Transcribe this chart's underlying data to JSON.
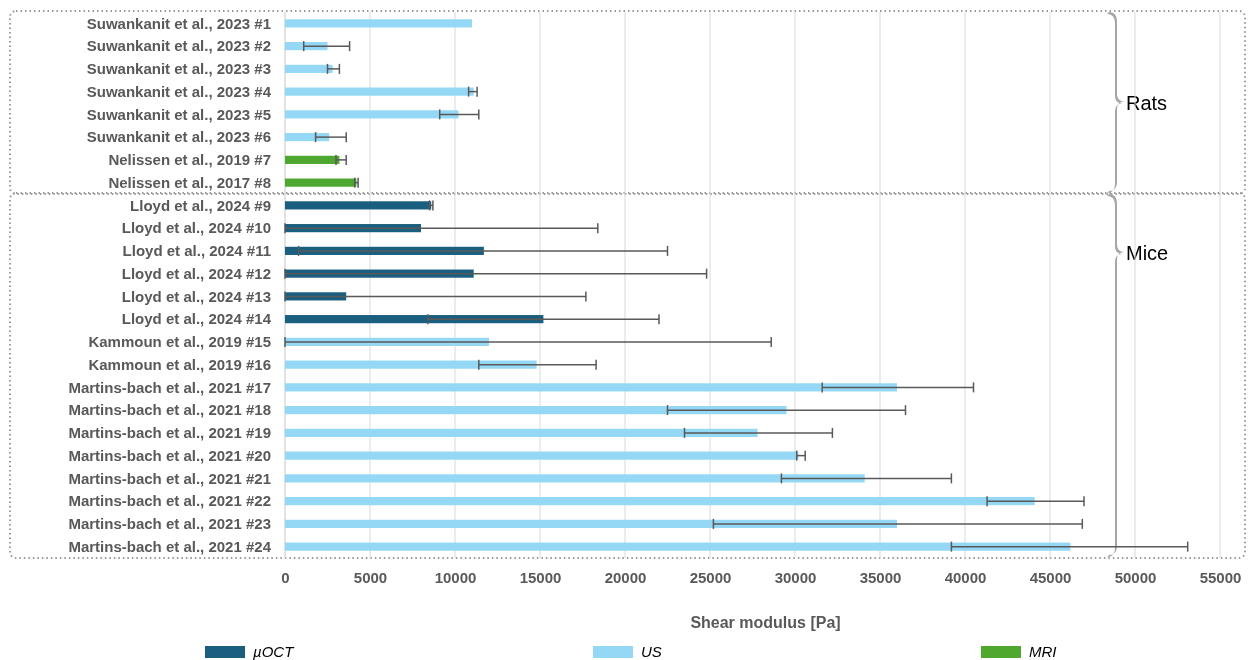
{
  "chart_data": {
    "type": "bar",
    "orientation": "horizontal",
    "xlabel": "Shear modulus [Pa]",
    "categories": [
      "Suwankanit et al., 2023 #1",
      "Suwankanit et al., 2023 #2",
      "Suwankanit et al., 2023 #3",
      "Suwankanit et al., 2023 #4",
      "Suwankanit et al., 2023 #5",
      "Suwankanit et al., 2023 #6",
      "Nelissen et al., 2019 #7",
      "Nelissen et al., 2017 #8",
      "Lloyd et al., 2024 #9",
      "Lloyd et al., 2024 #10",
      "Lloyd et al., 2024 #11",
      "Lloyd et al., 2024 #12",
      "Lloyd et al., 2024 #13",
      "Lloyd et al., 2024 #14",
      "Kammoun et al., 2019 #15",
      "Kammoun et al., 2019 #16",
      "Martins-bach et al., 2021 #17",
      "Martins-bach et al., 2021 #18",
      "Martins-bach et al., 2021 #19",
      "Martins-bach et al., 2021 #20",
      "Martins-bach et al., 2021 #21",
      "Martins-bach et al., 2021 #22",
      "Martins-bach et al., 2021 #23",
      "Martins-bach et al., 2021 #24"
    ],
    "series": [
      {
        "name": "µOCT",
        "color": "#1a5f7f",
        "values": [
          null,
          null,
          null,
          null,
          null,
          null,
          null,
          null,
          8600,
          8000,
          11700,
          11100,
          3600,
          15200,
          null,
          null,
          null,
          null,
          null,
          null,
          null,
          null,
          null,
          null
        ],
        "errors": [
          null,
          null,
          null,
          null,
          null,
          null,
          null,
          null,
          [
            8500,
            8700
          ],
          [
            0,
            18400
          ],
          [
            800,
            22500
          ],
          [
            0,
            24800
          ],
          [
            0,
            17700
          ],
          [
            8400,
            22000
          ],
          null,
          null,
          null,
          null,
          null,
          null,
          null,
          null,
          null,
          null
        ]
      },
      {
        "name": "US",
        "color": "#94d8f5",
        "values": [
          11000,
          2500,
          2800,
          11100,
          10200,
          2600,
          null,
          null,
          null,
          null,
          null,
          null,
          null,
          null,
          12000,
          14800,
          36000,
          29500,
          27800,
          30200,
          34100,
          44100,
          36000,
          46200
        ],
        "errors": [
          null,
          [
            1100,
            3800
          ],
          [
            2500,
            3200
          ],
          [
            10800,
            11300
          ],
          [
            9100,
            11400
          ],
          [
            1800,
            3600
          ],
          null,
          null,
          null,
          null,
          null,
          null,
          null,
          null,
          [
            0,
            28600
          ],
          [
            11400,
            18300
          ],
          [
            31600,
            40500
          ],
          [
            22500,
            36500
          ],
          [
            23500,
            32200
          ],
          [
            30100,
            30600
          ],
          [
            29200,
            39200
          ],
          [
            41300,
            47000
          ],
          [
            25200,
            46900
          ],
          [
            39200,
            53100
          ]
        ]
      },
      {
        "name": "MRI",
        "color": "#4ea72e",
        "values": [
          null,
          null,
          null,
          null,
          null,
          null,
          3200,
          4200,
          null,
          null,
          null,
          null,
          null,
          null,
          null,
          null,
          null,
          null,
          null,
          null,
          null,
          null,
          null,
          null
        ],
        "errors": [
          null,
          null,
          null,
          null,
          null,
          null,
          [
            3000,
            3600
          ],
          [
            4100,
            4300
          ],
          null,
          null,
          null,
          null,
          null,
          null,
          null,
          null,
          null,
          null,
          null,
          null,
          null,
          null,
          null,
          null
        ]
      }
    ],
    "xlim": [
      0,
      55000
    ],
    "xticks": [
      0,
      5000,
      10000,
      15000,
      20000,
      25000,
      30000,
      35000,
      40000,
      45000,
      50000,
      55000
    ],
    "grid": "x",
    "legend": "bottom",
    "annotations": [
      "Rats",
      "Mice"
    ]
  }
}
